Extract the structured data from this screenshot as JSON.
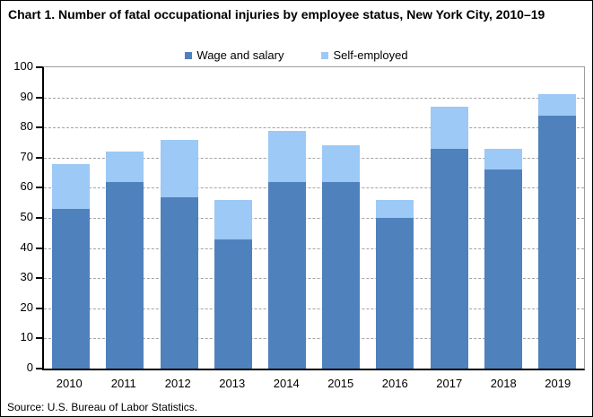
{
  "title": "Chart 1. Number of fatal occupational injuries by employee status, New York City, 2010–19",
  "source": "Source: U.S. Bureau of Labor Statistics.",
  "colors": {
    "wage_and_salary": "#4F81BD",
    "self_employed": "#9CC9F5",
    "axis": "#000000",
    "gridline": "#a3a3a3"
  },
  "chart_data": {
    "type": "bar",
    "stacked": true,
    "title": "Chart 1. Number of fatal occupational injuries by employee status, New York City, 2010–19",
    "categories": [
      "2010",
      "2011",
      "2012",
      "2013",
      "2014",
      "2015",
      "2016",
      "2017",
      "2018",
      "2019"
    ],
    "series": [
      {
        "name": "Wage and salary",
        "color": "#4F81BD",
        "values": [
          53,
          62,
          57,
          43,
          62,
          62,
          50,
          73,
          66,
          84
        ]
      },
      {
        "name": "Self-employed",
        "color": "#9CC9F5",
        "values": [
          15,
          10,
          19,
          13,
          17,
          12,
          6,
          14,
          7,
          7
        ]
      }
    ],
    "totals": [
      68,
      72,
      76,
      56,
      79,
      74,
      56,
      87,
      73,
      91
    ],
    "xlabel": "",
    "ylabel": "",
    "ylim": [
      0,
      100
    ],
    "ytick_interval": 10,
    "grid": "horizontal-dashed",
    "legend_position": "top-center"
  }
}
